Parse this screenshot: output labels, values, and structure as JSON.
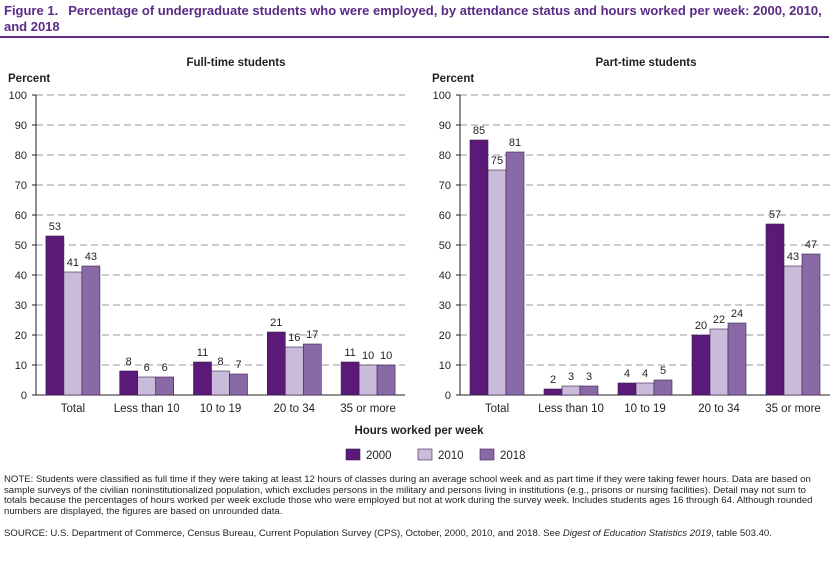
{
  "figure": {
    "label": "Figure 1.",
    "title": "Percentage of undergraduate students who were employed, by attendance status and hours worked per week: 2000, 2010, and 2018"
  },
  "colors": {
    "title": "#5b2a86",
    "series_2000": "#5b1a78",
    "series_2010": "#c9bbda",
    "series_2018": "#8a6aa6",
    "grid": "#9a9a9a",
    "axis": "#231f20"
  },
  "chart_data": [
    {
      "type": "bar",
      "title": "Full-time students",
      "ylabel": "Percent",
      "xlabel": "Hours worked per week",
      "ylim": [
        0,
        100
      ],
      "yticks": [
        0,
        10,
        20,
        30,
        40,
        50,
        60,
        70,
        80,
        90,
        100
      ],
      "grid": true,
      "categories": [
        "Total",
        "Less than 10",
        "10 to 19",
        "20 to 34",
        "35 or more"
      ],
      "series": [
        {
          "name": "2000",
          "values": [
            53,
            8,
            11,
            21,
            11
          ]
        },
        {
          "name": "2010",
          "values": [
            41,
            6,
            8,
            16,
            10
          ]
        },
        {
          "name": "2018",
          "values": [
            43,
            6,
            7,
            17,
            10
          ]
        }
      ]
    },
    {
      "type": "bar",
      "title": "Part-time students",
      "ylabel": "Percent",
      "xlabel": "Hours worked per week",
      "ylim": [
        0,
        100
      ],
      "yticks": [
        0,
        10,
        20,
        30,
        40,
        50,
        60,
        70,
        80,
        90,
        100
      ],
      "grid": true,
      "categories": [
        "Total",
        "Less than 10",
        "10 to 19",
        "20 to 34",
        "35 or more"
      ],
      "series": [
        {
          "name": "2000",
          "values": [
            85,
            2,
            4,
            20,
            57
          ]
        },
        {
          "name": "2010",
          "values": [
            75,
            3,
            4,
            22,
            43
          ]
        },
        {
          "name": "2018",
          "values": [
            81,
            3,
            5,
            24,
            47
          ]
        }
      ]
    }
  ],
  "shared_xlabel": "Hours worked per week",
  "legend": [
    "2000",
    "2010",
    "2018"
  ],
  "note": "NOTE: Students were classified as full time if they were taking at least 12 hours of classes during an average school week and as part time if they were taking fewer hours. Data are based on sample surveys of the civilian noninstitutionalized population, which excludes persons in the military and persons living in institutions (e.g., prisons or nursing facilities). Detail may not sum to totals because the percentages of hours worked per week exclude those who were employed but not at work during the survey week. Includes students ages 16 through 64. Although rounded numbers are displayed, the figures are based on unrounded data.",
  "source": {
    "text": "SOURCE: U.S. Department of Commerce, Census Bureau, Current Population Survey (CPS), October, 2000, 2010, and 2018. See",
    "publication": "Digest of Education Statistics 2019",
    "table": ", table 503.40."
  }
}
